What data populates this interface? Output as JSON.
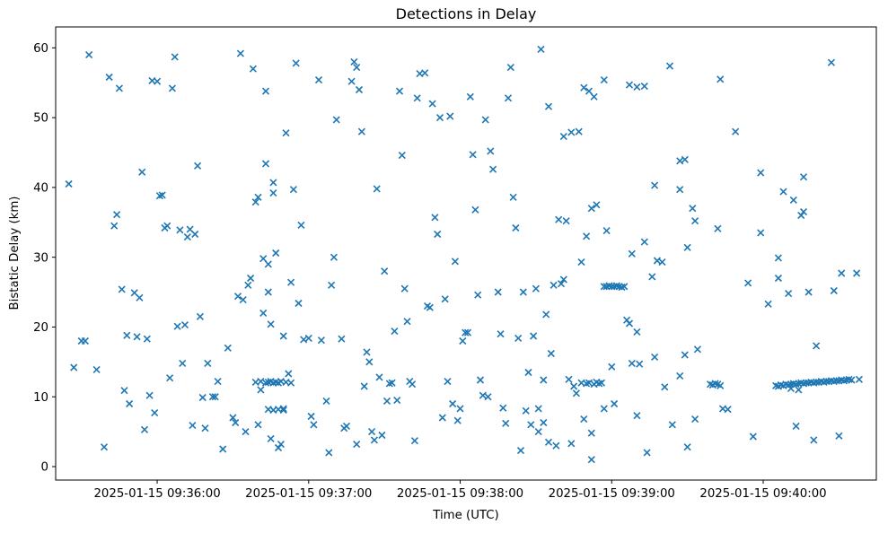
{
  "chart_data": {
    "type": "scatter",
    "title": "Detections in Delay",
    "xlabel": "Time (UTC)",
    "ylabel": "Bistatic Delay (km)",
    "marker": "x",
    "marker_color": "#1f77b4",
    "grid": false,
    "legend": "none",
    "x_axis": {
      "description": "seconds after 2025-01-15 09:35:00 UTC",
      "lim": [
        19.8,
        344.8
      ],
      "ticks": [
        {
          "t": 60,
          "label": "2025-01-15 09:36:00"
        },
        {
          "t": 120,
          "label": "2025-01-15 09:37:00"
        },
        {
          "t": 180,
          "label": "2025-01-15 09:38:00"
        },
        {
          "t": 240,
          "label": "2025-01-15 09:39:00"
        },
        {
          "t": 300,
          "label": "2025-01-15 09:40:00"
        }
      ]
    },
    "y_axis": {
      "lim": [
        -1.93,
        63.0
      ],
      "ticks": [
        0,
        10,
        20,
        30,
        40,
        50,
        60
      ]
    },
    "points": [
      [
        25,
        40.5
      ],
      [
        27,
        14.2
      ],
      [
        30,
        18.0
      ],
      [
        31.5,
        18.0
      ],
      [
        33,
        59.0
      ],
      [
        36,
        13.9
      ],
      [
        39,
        2.8
      ],
      [
        41,
        55.8
      ],
      [
        43,
        34.5
      ],
      [
        44,
        36.1
      ],
      [
        45,
        54.2
      ],
      [
        46,
        25.4
      ],
      [
        47,
        10.9
      ],
      [
        48,
        18.8
      ],
      [
        49,
        9.0
      ],
      [
        51,
        24.9
      ],
      [
        52,
        18.6
      ],
      [
        53,
        24.2
      ],
      [
        54,
        42.2
      ],
      [
        55,
        5.3
      ],
      [
        56,
        18.3
      ],
      [
        57,
        10.2
      ],
      [
        58,
        55.3
      ],
      [
        59,
        7.7
      ],
      [
        60,
        55.2
      ],
      [
        61,
        38.8
      ],
      [
        62,
        38.9
      ],
      [
        63,
        34.2
      ],
      [
        64,
        34.5
      ],
      [
        65,
        12.7
      ],
      [
        66,
        54.2
      ],
      [
        67,
        58.7
      ],
      [
        68,
        20.1
      ],
      [
        69,
        33.9
      ],
      [
        70,
        14.8
      ],
      [
        71,
        20.3
      ],
      [
        72,
        32.9
      ],
      [
        73,
        34.0
      ],
      [
        74,
        5.9
      ],
      [
        75,
        33.3
      ],
      [
        76,
        43.1
      ],
      [
        77,
        21.5
      ],
      [
        78,
        9.9
      ],
      [
        79,
        5.5
      ],
      [
        80,
        14.8
      ],
      [
        82,
        10.0
      ],
      [
        83,
        10.0
      ],
      [
        84,
        12.2
      ],
      [
        86,
        2.5
      ],
      [
        88,
        17.0
      ],
      [
        90,
        7.0
      ],
      [
        91,
        6.3
      ],
      [
        92,
        24.4
      ],
      [
        93,
        59.2
      ],
      [
        94,
        23.9
      ],
      [
        95,
        5.0
      ],
      [
        96,
        26.0
      ],
      [
        97,
        27.0
      ],
      [
        98,
        57.0
      ],
      [
        99,
        37.9
      ],
      [
        100,
        38.6
      ],
      [
        101,
        11.0
      ],
      [
        102,
        22.0
      ],
      [
        103,
        53.8
      ],
      [
        104,
        25.0
      ],
      [
        105,
        20.4
      ],
      [
        106,
        39.2
      ],
      [
        107,
        30.6
      ],
      [
        108,
        2.7
      ],
      [
        109,
        3.2
      ],
      [
        110,
        8.1
      ],
      [
        111,
        47.8
      ],
      [
        112,
        13.3
      ],
      [
        113,
        26.4
      ],
      [
        114,
        39.7
      ],
      [
        115,
        57.8
      ],
      [
        116,
        23.4
      ],
      [
        99,
        12.1
      ],
      [
        101,
        12.2
      ],
      [
        103,
        12.0
      ],
      [
        104,
        12.1
      ],
      [
        105,
        12.2
      ],
      [
        106,
        12.0
      ],
      [
        107,
        12.1
      ],
      [
        108,
        12.0
      ],
      [
        109,
        12.2
      ],
      [
        111,
        12.1
      ],
      [
        113,
        12.0
      ],
      [
        104,
        8.2
      ],
      [
        106,
        8.1
      ],
      [
        108,
        8.2
      ],
      [
        110,
        8.3
      ],
      [
        102,
        29.8
      ],
      [
        104,
        29.0
      ],
      [
        103,
        43.4
      ],
      [
        106,
        40.7
      ],
      [
        100,
        6.0
      ],
      [
        105,
        4.0
      ],
      [
        110,
        18.7
      ],
      [
        117,
        34.6
      ],
      [
        118,
        18.2
      ],
      [
        120,
        18.4
      ],
      [
        121,
        7.2
      ],
      [
        122,
        6.0
      ],
      [
        124,
        55.4
      ],
      [
        125,
        18.1
      ],
      [
        127,
        9.4
      ],
      [
        128,
        2.0
      ],
      [
        129,
        26.0
      ],
      [
        130,
        30.0
      ],
      [
        131,
        49.7
      ],
      [
        133,
        18.3
      ],
      [
        134,
        5.5
      ],
      [
        135,
        5.8
      ],
      [
        137,
        55.2
      ],
      [
        138,
        58.0
      ],
      [
        139,
        57.2
      ],
      [
        139,
        3.2
      ],
      [
        140,
        54.0
      ],
      [
        141,
        48.0
      ],
      [
        142,
        11.5
      ],
      [
        143,
        16.4
      ],
      [
        144,
        15.0
      ],
      [
        145,
        5.0
      ],
      [
        146,
        3.8
      ],
      [
        147,
        39.8
      ],
      [
        148,
        12.8
      ],
      [
        149,
        4.5
      ],
      [
        150,
        28.0
      ],
      [
        151,
        9.4
      ],
      [
        152,
        11.9
      ],
      [
        153,
        12.0
      ],
      [
        154,
        19.4
      ],
      [
        155,
        9.5
      ],
      [
        156,
        53.8
      ],
      [
        157,
        44.6
      ],
      [
        158,
        25.5
      ],
      [
        159,
        20.8
      ],
      [
        160,
        12.2
      ],
      [
        161,
        11.8
      ],
      [
        162,
        3.7
      ],
      [
        163,
        52.8
      ],
      [
        164,
        56.3
      ],
      [
        166,
        56.4
      ],
      [
        167,
        23.0
      ],
      [
        168,
        22.8
      ],
      [
        169,
        52.0
      ],
      [
        170,
        35.7
      ],
      [
        171,
        33.3
      ],
      [
        172,
        50.0
      ],
      [
        173,
        7.0
      ],
      [
        174,
        24.0
      ],
      [
        175,
        12.2
      ],
      [
        176,
        50.2
      ],
      [
        177,
        9.0
      ],
      [
        178,
        29.4
      ],
      [
        179,
        6.6
      ],
      [
        180,
        8.3
      ],
      [
        181,
        18.0
      ],
      [
        182,
        19.2
      ],
      [
        183,
        19.2
      ],
      [
        184,
        53.0
      ],
      [
        185,
        44.7
      ],
      [
        186,
        36.8
      ],
      [
        187,
        24.6
      ],
      [
        188,
        12.4
      ],
      [
        189,
        10.2
      ],
      [
        190,
        49.7
      ],
      [
        191,
        10.0
      ],
      [
        192,
        45.2
      ],
      [
        193,
        42.6
      ],
      [
        195,
        25.0
      ],
      [
        196,
        19.0
      ],
      [
        197,
        8.4
      ],
      [
        198,
        6.2
      ],
      [
        199,
        52.8
      ],
      [
        200,
        57.2
      ],
      [
        201,
        38.6
      ],
      [
        202,
        34.2
      ],
      [
        203,
        18.4
      ],
      [
        204,
        2.3
      ],
      [
        205,
        25.0
      ],
      [
        206,
        8.0
      ],
      [
        207,
        13.5
      ],
      [
        208,
        6.0
      ],
      [
        209,
        18.7
      ],
      [
        210,
        25.5
      ],
      [
        211,
        5.0
      ],
      [
        211,
        8.3
      ],
      [
        212,
        59.8
      ],
      [
        213,
        12.4
      ],
      [
        213,
        6.3
      ],
      [
        214,
        21.8
      ],
      [
        215,
        51.6
      ],
      [
        215,
        3.5
      ],
      [
        216,
        16.2
      ],
      [
        217,
        26.0
      ],
      [
        218,
        3.0
      ],
      [
        219,
        35.4
      ],
      [
        220,
        26.2
      ],
      [
        221,
        47.3
      ],
      [
        221,
        26.8
      ],
      [
        222,
        35.2
      ],
      [
        223,
        12.5
      ],
      [
        224,
        47.9
      ],
      [
        224,
        3.3
      ],
      [
        225,
        11.5
      ],
      [
        226,
        10.5
      ],
      [
        227,
        48.0
      ],
      [
        228,
        29.3
      ],
      [
        228,
        12.0
      ],
      [
        229,
        54.3
      ],
      [
        229,
        6.8
      ],
      [
        230,
        11.9
      ],
      [
        230,
        33.0
      ],
      [
        231,
        53.8
      ],
      [
        231,
        12.0
      ],
      [
        232,
        4.8
      ],
      [
        232,
        37.0
      ],
      [
        232,
        1.0
      ],
      [
        233,
        53.0
      ],
      [
        233,
        11.8
      ],
      [
        234,
        37.5
      ],
      [
        234,
        12.1
      ],
      [
        235,
        11.9
      ],
      [
        236,
        12.0
      ],
      [
        237,
        55.4
      ],
      [
        237,
        8.3
      ],
      [
        237,
        25.8
      ],
      [
        238,
        33.8
      ],
      [
        238,
        25.8
      ],
      [
        239,
        25.9
      ],
      [
        240,
        14.3
      ],
      [
        240,
        25.8
      ],
      [
        241,
        9.0
      ],
      [
        241,
        25.8
      ],
      [
        242,
        25.9
      ],
      [
        243,
        25.8
      ],
      [
        244,
        25.7
      ],
      [
        245,
        25.8
      ],
      [
        246,
        21.0
      ],
      [
        247,
        54.7
      ],
      [
        247,
        20.5
      ],
      [
        248,
        30.5
      ],
      [
        248,
        14.8
      ],
      [
        250,
        54.4
      ],
      [
        250,
        19.3
      ],
      [
        250,
        7.3
      ],
      [
        251,
        14.7
      ],
      [
        253,
        54.5
      ],
      [
        253,
        32.2
      ],
      [
        254,
        2.0
      ],
      [
        256,
        27.2
      ],
      [
        257,
        15.7
      ],
      [
        257,
        40.3
      ],
      [
        258,
        29.5
      ],
      [
        260,
        29.3
      ],
      [
        261,
        11.4
      ],
      [
        263,
        57.4
      ],
      [
        264,
        6.0
      ],
      [
        267,
        43.8
      ],
      [
        267,
        39.7
      ],
      [
        267,
        13.0
      ],
      [
        269,
        44.0
      ],
      [
        269,
        16.0
      ],
      [
        270,
        31.4
      ],
      [
        270,
        2.8
      ],
      [
        272,
        37.0
      ],
      [
        273,
        35.2
      ],
      [
        273,
        6.8
      ],
      [
        274,
        16.8
      ],
      [
        279,
        11.8
      ],
      [
        280,
        11.7
      ],
      [
        281,
        11.9
      ],
      [
        282,
        11.8
      ],
      [
        283,
        11.6
      ],
      [
        282,
        34.1
      ],
      [
        283,
        55.5
      ],
      [
        284,
        8.3
      ],
      [
        286,
        8.2
      ],
      [
        289,
        48.0
      ],
      [
        294,
        26.3
      ],
      [
        296,
        4.3
      ],
      [
        299,
        33.5
      ],
      [
        299,
        42.1
      ],
      [
        302,
        23.3
      ],
      [
        306,
        29.9
      ],
      [
        306,
        27.0
      ],
      [
        308,
        39.4
      ],
      [
        310,
        24.8
      ],
      [
        312,
        38.2
      ],
      [
        313,
        5.8
      ],
      [
        315,
        36.0
      ],
      [
        316,
        36.5
      ],
      [
        316,
        41.5
      ],
      [
        311,
        11.2
      ],
      [
        314,
        11.0
      ],
      [
        321,
        17.3
      ],
      [
        320,
        3.8
      ],
      [
        318,
        25.0
      ],
      [
        327,
        57.9
      ],
      [
        328,
        25.2
      ],
      [
        331,
        27.7
      ],
      [
        330,
        4.4
      ],
      [
        337,
        27.7
      ],
      [
        338,
        12.5
      ],
      [
        305,
        11.6
      ],
      [
        306,
        11.5
      ],
      [
        307,
        11.7
      ],
      [
        308,
        11.6
      ],
      [
        309,
        11.8
      ],
      [
        310,
        11.7
      ],
      [
        311,
        11.8
      ],
      [
        312,
        11.9
      ],
      [
        313,
        11.8
      ],
      [
        314,
        11.9
      ],
      [
        315,
        12.0
      ],
      [
        316,
        11.9
      ],
      [
        317,
        12.0
      ],
      [
        318,
        12.0
      ],
      [
        319,
        12.1
      ],
      [
        320,
        12.0
      ],
      [
        321,
        12.1
      ],
      [
        322,
        12.1
      ],
      [
        323,
        12.2
      ],
      [
        324,
        12.1
      ],
      [
        325,
        12.2
      ],
      [
        326,
        12.2
      ],
      [
        327,
        12.3
      ],
      [
        328,
        12.2
      ],
      [
        329,
        12.3
      ],
      [
        330,
        12.3
      ],
      [
        331,
        12.4
      ],
      [
        332,
        12.3
      ],
      [
        333,
        12.4
      ],
      [
        334,
        12.5
      ],
      [
        335,
        12.4
      ]
    ]
  }
}
